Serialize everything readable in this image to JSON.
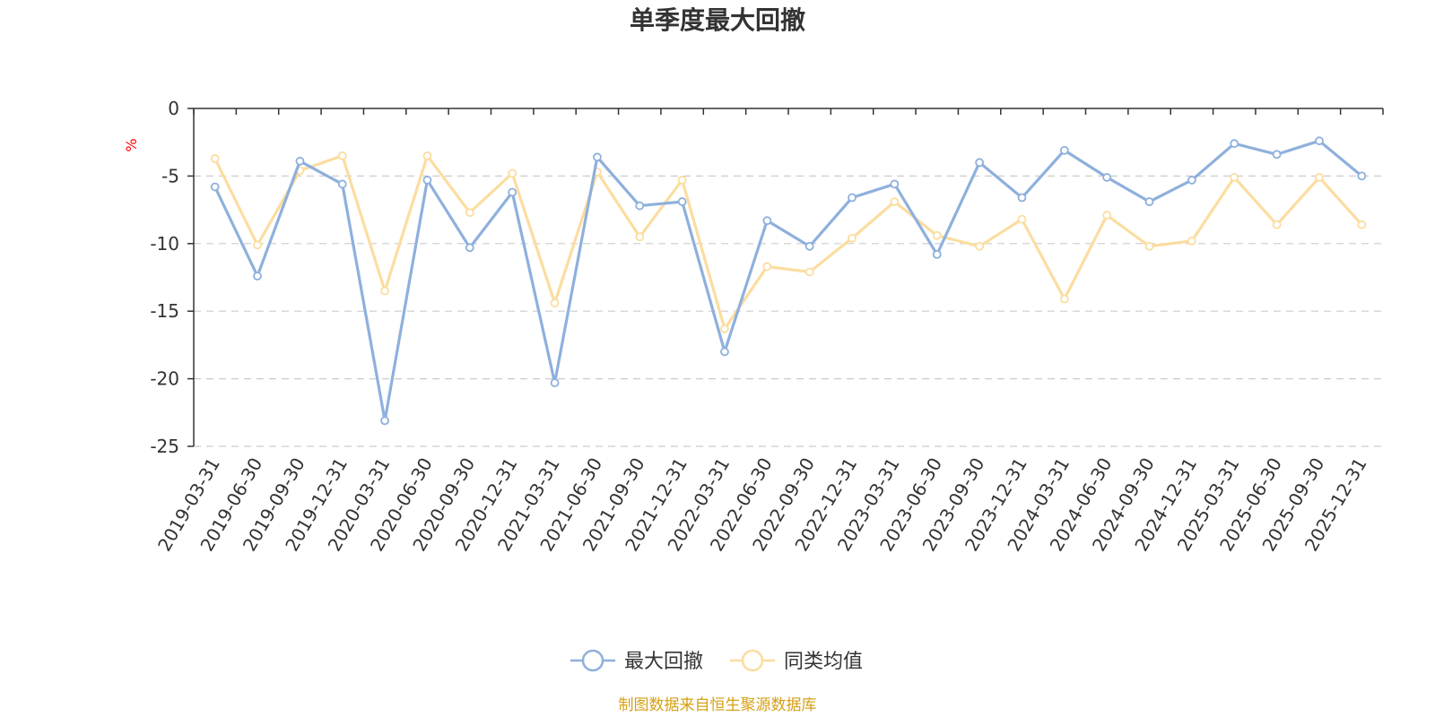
{
  "chart_data": {
    "type": "line",
    "title": "单季度最大回撤",
    "ylabel": "%",
    "ylim": [
      -25,
      0
    ],
    "yticks": [
      0,
      -5,
      -10,
      -15,
      -20,
      -25
    ],
    "grid": true,
    "legend_position": "bottom",
    "categories": [
      "2019-03-31",
      "2019-06-30",
      "2019-09-30",
      "2019-12-31",
      "2020-03-31",
      "2020-06-30",
      "2020-09-30",
      "2020-12-31",
      "2021-03-31",
      "2021-06-30",
      "2021-09-30",
      "2021-12-31",
      "2022-03-31",
      "2022-06-30",
      "2022-09-30",
      "2022-12-31",
      "2023-03-31",
      "2023-06-30",
      "2023-09-30",
      "2023-12-31",
      "2024-03-31",
      "2024-06-30",
      "2024-09-30",
      "2024-12-31",
      "2025-03-31",
      "2025-06-30",
      "2025-09-30",
      "2025-12-31"
    ],
    "series": [
      {
        "name": "最大回撤",
        "color": "#8eb0dc",
        "values": [
          -5.8,
          -12.4,
          -3.9,
          -5.6,
          -23.1,
          -5.3,
          -10.3,
          -6.2,
          -20.3,
          -3.6,
          -7.2,
          -6.9,
          -18.0,
          -8.3,
          -10.2,
          -6.6,
          -5.6,
          -10.8,
          -4.0,
          -6.6,
          -3.1,
          -5.1,
          -6.9,
          -5.3,
          -2.6,
          -3.4,
          -2.4,
          -5.0
        ]
      },
      {
        "name": "同类均值",
        "color": "#fbdda0",
        "values": [
          -3.7,
          -10.1,
          -4.6,
          -3.5,
          -13.5,
          -3.5,
          -7.7,
          -4.8,
          -14.4,
          -4.7,
          -9.5,
          -5.3,
          -16.3,
          -11.7,
          -12.1,
          -9.6,
          -6.9,
          -9.4,
          -10.2,
          -8.2,
          -14.1,
          -7.9,
          -10.2,
          -9.8,
          -5.1,
          -8.6,
          -5.1,
          -8.6
        ]
      }
    ]
  },
  "source": {
    "text": "制图数据来自恒生聚源数据库",
    "color": "#d4a017"
  },
  "colors": {
    "axis": "#333333",
    "grid": "#cccccc",
    "unit": "#ff0000"
  }
}
